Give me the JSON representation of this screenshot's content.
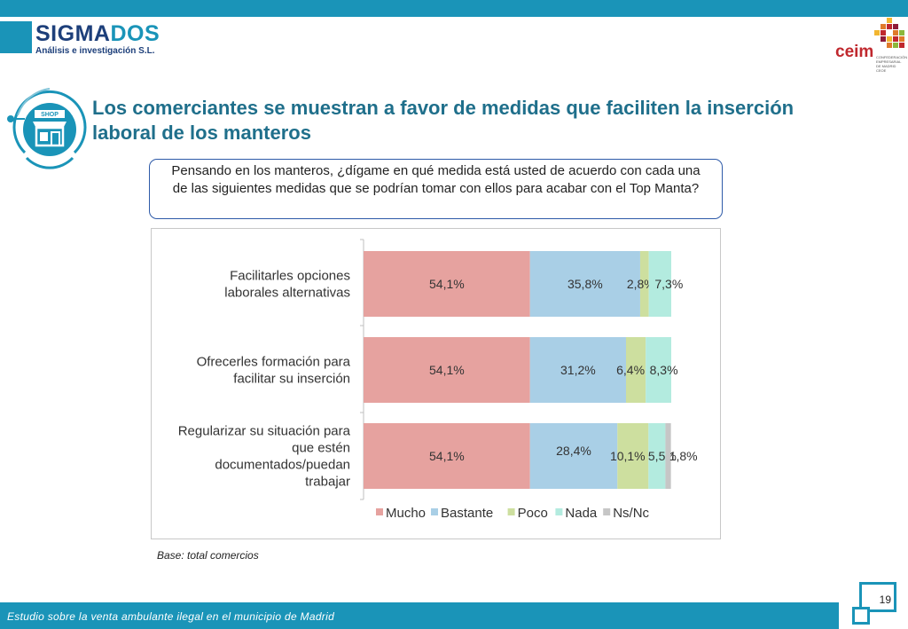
{
  "header": {
    "logo_part1": "SIGMA",
    "logo_part2": "DOS",
    "logo_subtitle": "Análisis e investigación S.L.",
    "partner_logo": "ceim",
    "partner_subtitle": "CONFEDERACIÓN EMPRESARIAL DE MADRID CEOE",
    "shop_sign": "SHOP"
  },
  "title": "Los comerciantes se muestran a favor de medidas que faciliten la inserción laboral de los manteros",
  "question": "Pensando en los manteros, ¿dígame en qué medida está usted de acuerdo con cada una de las siguientes medidas que se podrían tomar con ellos para acabar con el Top Manta?",
  "chart_data": {
    "type": "bar",
    "orientation": "horizontal",
    "stacked": true,
    "categories": [
      "Facilitarles opciones laborales alternativas",
      "Ofrecerles formación para facilitar su inserción",
      "Regularizar su situación para que estén documentados/puedan trabajar"
    ],
    "category_lines": [
      [
        "Facilitarles opciones",
        "laborales alternativas"
      ],
      [
        "Ofrecerles formación para",
        "facilitar su inserción"
      ],
      [
        "Regularizar su situación para",
        "que estén",
        "documentados/puedan",
        "trabajar"
      ]
    ],
    "series": [
      {
        "name": "Mucho",
        "color": "#e6a29f",
        "values": [
          54.1,
          54.1,
          54.1
        ],
        "labels": [
          "54,1%",
          "54,1%",
          "54,1%"
        ]
      },
      {
        "name": "Bastante",
        "color": "#a9cfe6",
        "values": [
          35.8,
          31.2,
          28.4
        ],
        "labels": [
          "35,8%",
          "31,2%",
          "28,4%"
        ]
      },
      {
        "name": "Poco",
        "color": "#cddf9f",
        "values": [
          2.8,
          6.4,
          10.1
        ],
        "labels": [
          "2,8%",
          "6,4%",
          "10,1%"
        ]
      },
      {
        "name": "Nada",
        "color": "#b3ebdf",
        "values": [
          7.3,
          8.3,
          5.5
        ],
        "labels": [
          "7,3%",
          "8,3%",
          "5,5%"
        ]
      },
      {
        "name": "Ns/Nc",
        "color": "#c6c6c6",
        "values": [
          0,
          0,
          1.8
        ],
        "labels": [
          "",
          "",
          "1,8%"
        ]
      }
    ],
    "xlim": [
      0,
      100
    ],
    "legend_position": "bottom",
    "title": "",
    "xlabel": "",
    "ylabel": ""
  },
  "base_note": "Base: total comercios",
  "footer": {
    "study_title": "Estudio sobre la venta ambulante ilegal en el municipio de Madrid",
    "page_number": "19"
  },
  "colors": {
    "brand": "#1a94b8",
    "title": "#1f6f8b",
    "question_border": "#2e5aa8"
  }
}
